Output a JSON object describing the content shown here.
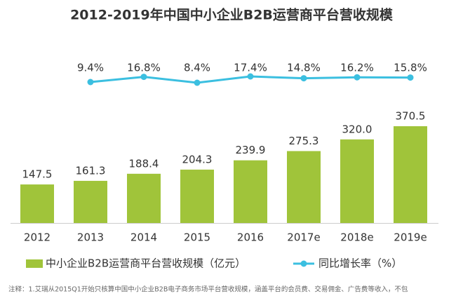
{
  "chart_data": {
    "type": "bar",
    "title": "2012-2019年中国中小企业B2B运营商平台营收规模",
    "categories": [
      "2012",
      "2013",
      "2014",
      "2015",
      "2016",
      "2017e",
      "2018e",
      "2019e"
    ],
    "series": [
      {
        "name": "中小企业B2B运营商平台营收规模（亿元）",
        "type": "bar",
        "color": "#a0c43a",
        "values": [
          147.5,
          161.3,
          188.4,
          204.3,
          239.9,
          275.3,
          320.0,
          370.5
        ],
        "value_labels": [
          "147.5",
          "161.3",
          "188.4",
          "204.3",
          "239.9",
          "275.3",
          "320.0",
          "370.5"
        ]
      },
      {
        "name": "同比增长率（%）",
        "type": "line",
        "color": "#3bbfe0",
        "values": [
          null,
          9.4,
          16.8,
          8.4,
          17.4,
          14.8,
          16.2,
          15.8
        ],
        "value_labels": [
          null,
          "9.4%",
          "16.8%",
          "8.4%",
          "17.4%",
          "14.8%",
          "16.2%",
          "15.8%"
        ]
      }
    ],
    "legend": "bottom",
    "note": "注释：1.艾瑞从2015Q1开始只核算中国中小企业B2B电子商务市场平台营收规模，涵盖平台的会员费、交易佣金、广告费等收入，不包"
  }
}
